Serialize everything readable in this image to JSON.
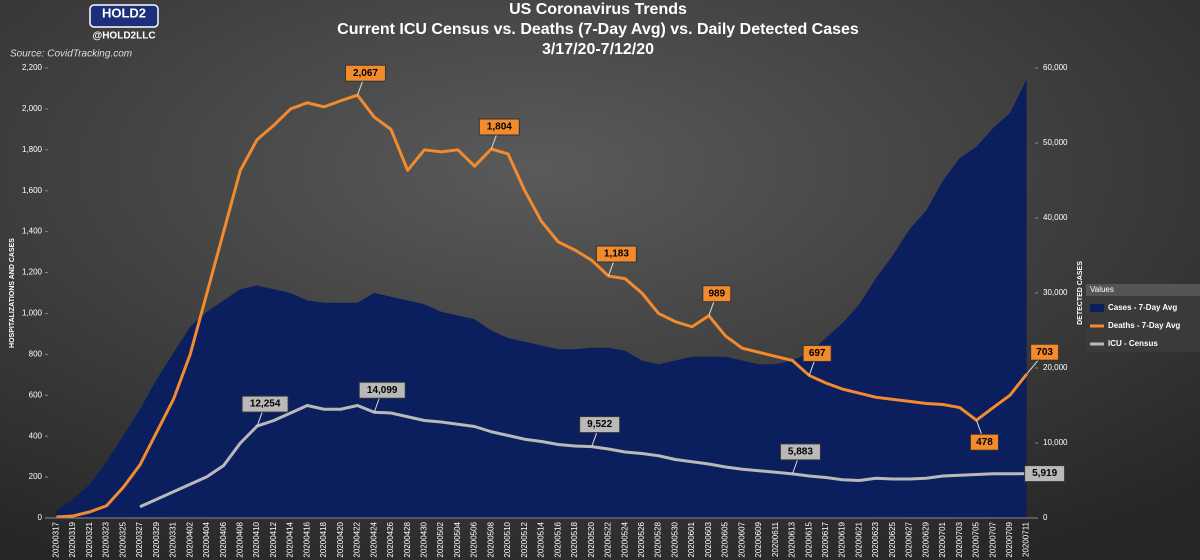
{
  "brand": {
    "logo": "HOLD2",
    "handle": "@HOLD2LLC",
    "source": "Source: CovidTracking.com"
  },
  "chart_data": {
    "type": "combo",
    "title": "US Coronavirus Trends",
    "subtitle": [
      "Current ICU Census vs. Deaths (7-Day Avg) vs. Daily Detected Cases",
      "3/17/20-7/12/20"
    ],
    "ylabel": "HOSPITALIZATIONS AND CASES",
    "y2label": "DETECTED CASES",
    "legend_title": "Values",
    "legend": "right",
    "categories": [
      "20200317",
      "20200319",
      "20200321",
      "20200323",
      "20200325",
      "20200327",
      "20200329",
      "20200331",
      "20200402",
      "20200404",
      "20200406",
      "20200408",
      "20200410",
      "20200412",
      "20200414",
      "20200416",
      "20200418",
      "20200420",
      "20200422",
      "20200424",
      "20200426",
      "20200428",
      "20200430",
      "20200502",
      "20200504",
      "20200506",
      "20200508",
      "20200510",
      "20200512",
      "20200514",
      "20200516",
      "20200518",
      "20200520",
      "20200522",
      "20200524",
      "20200526",
      "20200528",
      "20200530",
      "20200601",
      "20200603",
      "20200605",
      "20200607",
      "20200609",
      "20200611",
      "20200613",
      "20200615",
      "20200617",
      "20200619",
      "20200621",
      "20200623",
      "20200625",
      "20200627",
      "20200629",
      "20200701",
      "20200703",
      "20200705",
      "20200707",
      "20200709",
      "20200711"
    ],
    "ylim": [
      0,
      2200
    ],
    "yticks": [
      0,
      200,
      400,
      600,
      800,
      {
        "value": 1000,
        "label": "1,000"
      },
      {
        "value": 1200,
        "label": "1,200"
      },
      {
        "value": 1400,
        "label": "1,400"
      },
      {
        "value": 1600,
        "label": "1,600"
      },
      {
        "value": 1800,
        "label": "1,800"
      },
      {
        "value": 2000,
        "label": "2,000"
      },
      {
        "value": 2200,
        "label": "2,200"
      }
    ],
    "y2lim": [
      0,
      60000
    ],
    "y2ticks": [
      0,
      {
        "value": 10000,
        "label": "10,000"
      },
      {
        "value": 20000,
        "label": "20,000"
      },
      {
        "value": 30000,
        "label": "30,000"
      },
      {
        "value": 40000,
        "label": "40,000"
      },
      {
        "value": 50000,
        "label": "50,000"
      },
      {
        "value": 60000,
        "label": "60,000"
      }
    ],
    "series": [
      {
        "name": "Cases - 7-Day Avg",
        "kind": "area",
        "axis": "y2",
        "color": "#0b1f5e",
        "values": [
          1000,
          2500,
          4500,
          7500,
          11000,
          14500,
          18500,
          22000,
          25500,
          27500,
          29000,
          30500,
          31000,
          30500,
          30000,
          29000,
          28700,
          28700,
          28700,
          30000,
          29500,
          29000,
          28500,
          27500,
          27000,
          26500,
          25000,
          24000,
          23500,
          23000,
          22500,
          22500,
          22700,
          22700,
          22300,
          21000,
          20500,
          21000,
          21500,
          21500,
          21500,
          21000,
          20500,
          20500,
          21000,
          22000,
          24000,
          26000,
          28500,
          32000,
          35000,
          38500,
          41000,
          45000,
          48000,
          49500,
          52000,
          54000,
          58500
        ]
      },
      {
        "name": "Deaths - 7-Day Avg",
        "kind": "line",
        "color": "#f28a2e",
        "values": [
          5,
          10,
          30,
          60,
          150,
          260,
          420,
          580,
          800,
          1100,
          1400,
          1700,
          1850,
          1920,
          2000,
          2030,
          2010,
          2040,
          2067,
          1960,
          1900,
          1700,
          1800,
          1790,
          1800,
          1720,
          1804,
          1780,
          1600,
          1450,
          1350,
          1310,
          1260,
          1183,
          1170,
          1100,
          1000,
          960,
          935,
          989,
          890,
          830,
          810,
          790,
          770,
          697,
          660,
          630,
          610,
          590,
          580,
          570,
          560,
          555,
          540,
          478,
          540,
          600,
          703
        ],
        "value_labels": [
          null,
          null,
          null,
          null,
          null,
          null,
          null,
          null,
          null,
          null,
          null,
          null,
          null,
          null,
          null,
          null,
          null,
          null,
          "2,067",
          null,
          null,
          null,
          null,
          null,
          null,
          null,
          "1,804",
          null,
          null,
          null,
          null,
          null,
          null,
          "1,183",
          null,
          null,
          null,
          null,
          null,
          "989",
          null,
          null,
          null,
          null,
          null,
          "697",
          null,
          null,
          null,
          null,
          null,
          null,
          null,
          null,
          null,
          "478",
          null,
          null,
          "703"
        ]
      },
      {
        "name": "ICU - Census",
        "kind": "line",
        "axis": "y2",
        "color": "#b9b9b9",
        "values": [
          null,
          null,
          null,
          null,
          null,
          1500,
          2500,
          3500,
          4500,
          5500,
          7000,
          10000,
          12254,
          13000,
          14000,
          15000,
          14500,
          14500,
          15000,
          14099,
          14000,
          13500,
          13000,
          12800,
          12500,
          12200,
          11500,
          11000,
          10500,
          10200,
          9800,
          9600,
          9522,
          9200,
          8800,
          8600,
          8300,
          7800,
          7500,
          7200,
          6800,
          6500,
          6300,
          6100,
          5883,
          5600,
          5400,
          5100,
          5000,
          5300,
          5200,
          5200,
          5300,
          5600,
          5700,
          5800,
          5900,
          5900,
          5919
        ],
        "value_labels": [
          null,
          null,
          null,
          null,
          null,
          null,
          null,
          null,
          null,
          null,
          null,
          null,
          "12,254",
          null,
          null,
          null,
          null,
          null,
          null,
          "14,099",
          null,
          null,
          null,
          null,
          null,
          null,
          null,
          null,
          null,
          null,
          null,
          null,
          "9,522",
          null,
          null,
          null,
          null,
          null,
          null,
          null,
          null,
          null,
          null,
          null,
          "5,883",
          null,
          null,
          null,
          null,
          null,
          null,
          null,
          null,
          null,
          null,
          null,
          null,
          null,
          "5,919"
        ]
      }
    ]
  }
}
